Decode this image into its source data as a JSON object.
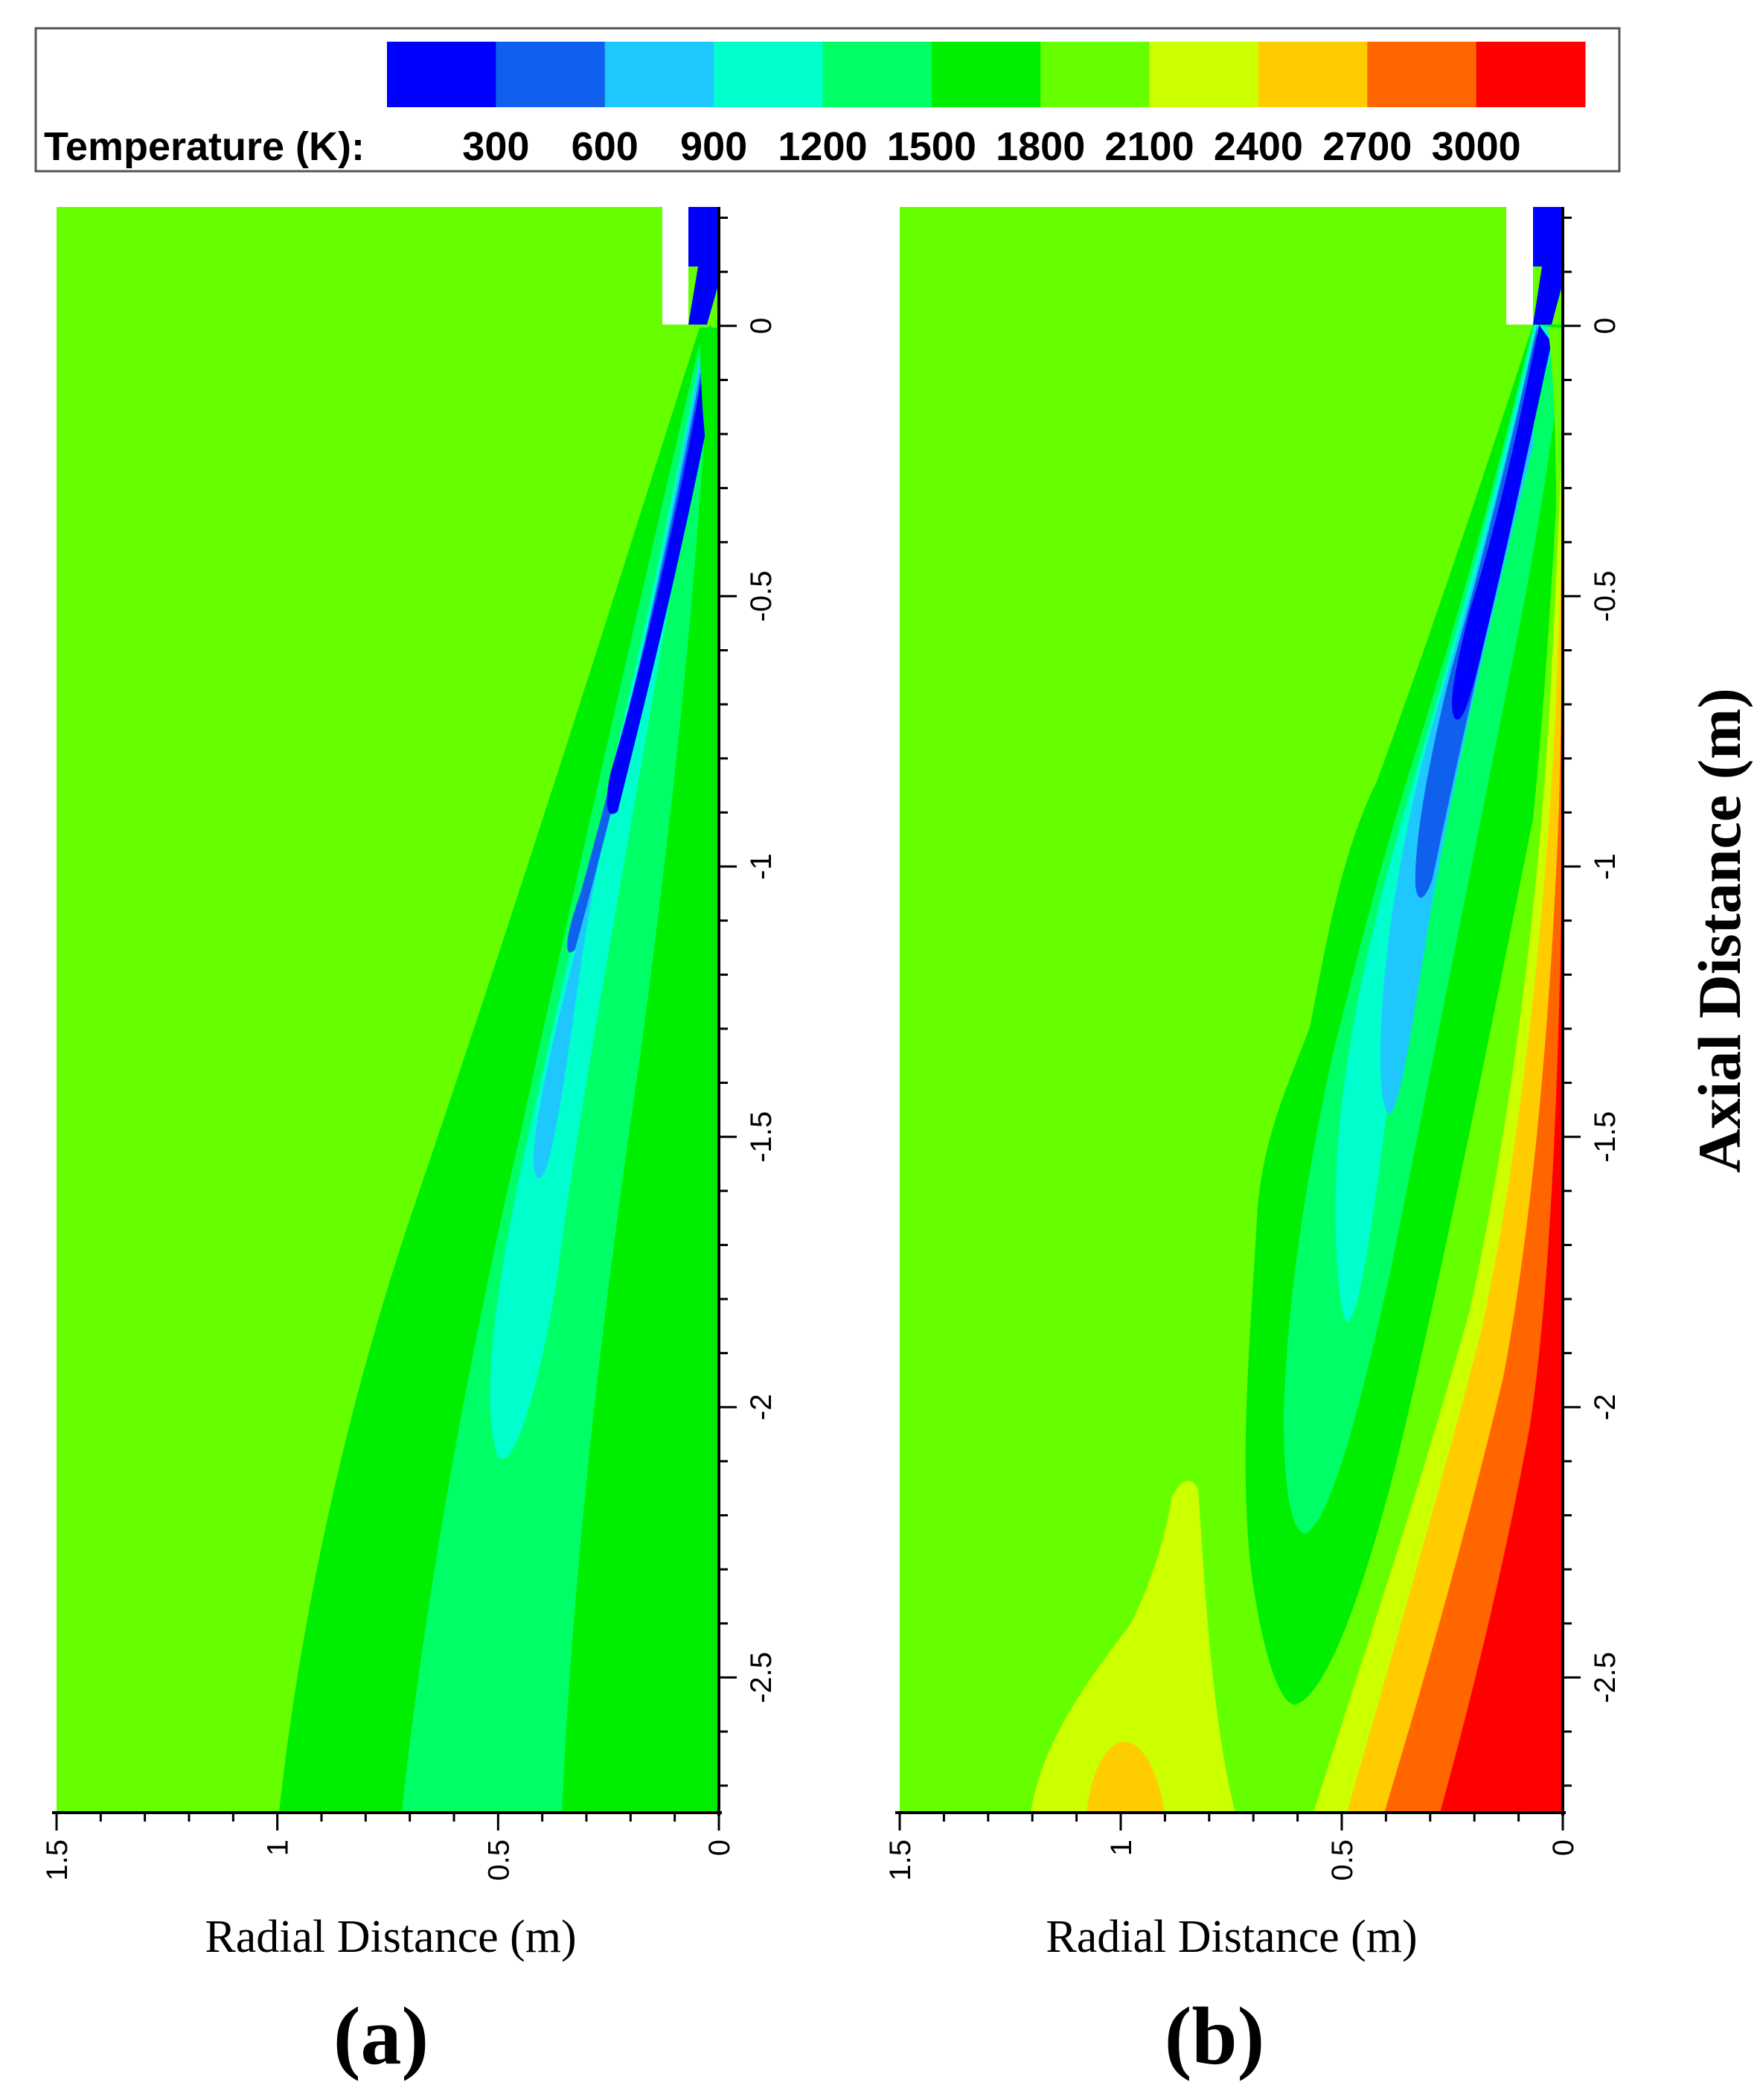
{
  "chart_data": [
    {
      "type": "heatmap",
      "panel_label": "(a)",
      "xlabel": "Radial Distance (m)",
      "x_ticks": [
        "1.5",
        "1",
        "0.5",
        "0"
      ],
      "x_range": [
        1.5,
        0
      ],
      "y_ticks": [
        "0",
        "-0.5",
        "-1",
        "-1.5",
        "-2",
        "-2.5"
      ],
      "y_range": [
        0.22,
        -2.75
      ]
    },
    {
      "type": "heatmap",
      "panel_label": "(b)",
      "xlabel": "Radial Distance (m)",
      "ylabel": "Axial Distance (m)",
      "x_ticks": [
        "1.5",
        "1",
        "0.5",
        "0"
      ],
      "x_range": [
        1.5,
        0
      ],
      "y_ticks": [
        "0",
        "-0.5",
        "-1",
        "-1.5",
        "-2",
        "-2.5"
      ],
      "y_range": [
        0.22,
        -2.75
      ]
    }
  ],
  "legend": {
    "title": "Temperature (K):",
    "labels": [
      "300",
      "600",
      "900",
      "1200",
      "1500",
      "1800",
      "2100",
      "2400",
      "2700",
      "3000"
    ],
    "colors": [
      "#0000ff",
      "#1060ee",
      "#1ec8ff",
      "#00ffcc",
      "#00ff66",
      "#00ee00",
      "#66ff00",
      "#ccff00",
      "#ffcc00",
      "#ff6600",
      "#ff0000"
    ]
  }
}
